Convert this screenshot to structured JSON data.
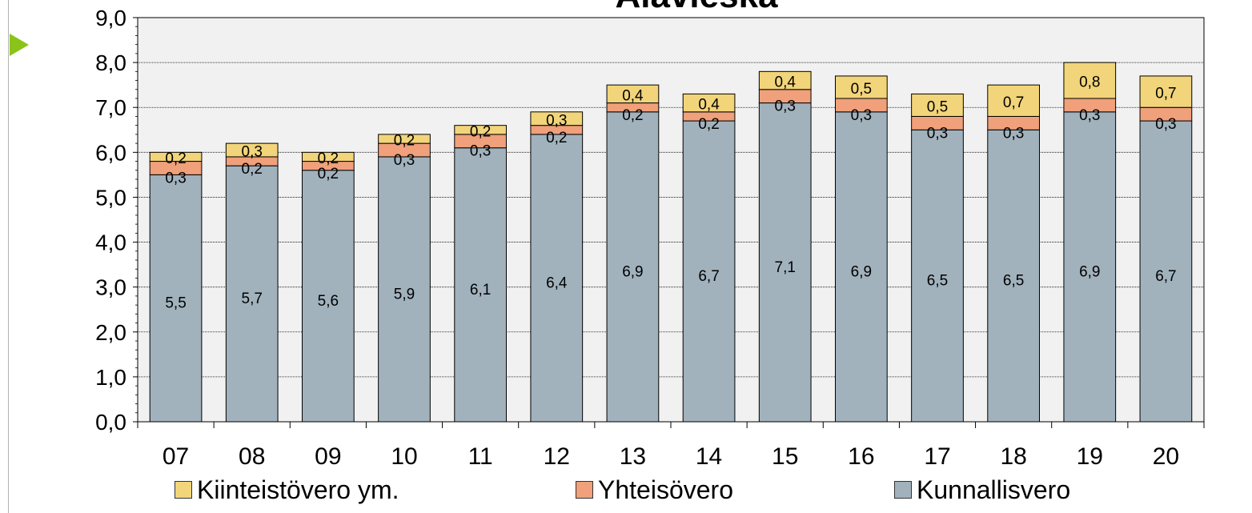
{
  "chart_data": {
    "type": "bar",
    "stacked": true,
    "title": "Alavieska",
    "categories": [
      "07",
      "08",
      "09",
      "10",
      "11",
      "12",
      "13",
      "14",
      "15",
      "16",
      "17",
      "18",
      "19",
      "20"
    ],
    "series": [
      {
        "name": "Kunnallisvero",
        "color": "#a1b2bd",
        "values": [
          5.5,
          5.7,
          5.6,
          5.9,
          6.1,
          6.4,
          6.9,
          6.7,
          7.1,
          6.9,
          6.5,
          6.5,
          6.9,
          6.7
        ],
        "labels": [
          "5,5",
          "5,7",
          "5,6",
          "5,9",
          "6,1",
          "6,4",
          "6,9",
          "6,7",
          "7,1",
          "6,9",
          "6,5",
          "6,5",
          "6,9",
          "6,7"
        ]
      },
      {
        "name": "Yhteisövero",
        "color": "#f0a07a",
        "values": [
          0.3,
          0.2,
          0.2,
          0.3,
          0.3,
          0.2,
          0.2,
          0.2,
          0.3,
          0.3,
          0.3,
          0.3,
          0.3,
          0.3
        ],
        "labels": [
          "0,3",
          "0,2",
          "0,2",
          "0,3",
          "0,3",
          "0,2",
          "0,2",
          "0,2",
          "0,3",
          "0,3",
          "0,3",
          "0,3",
          "0,3",
          "0,3"
        ]
      },
      {
        "name": "Kiinteistövero ym.",
        "color": "#f2d57a",
        "values": [
          0.2,
          0.3,
          0.2,
          0.2,
          0.2,
          0.3,
          0.4,
          0.4,
          0.4,
          0.5,
          0.5,
          0.7,
          0.8,
          0.7
        ],
        "labels": [
          "0,2",
          "0,3",
          "0,2",
          "0,2",
          "0,2",
          "0,3",
          "0,4",
          "0,4",
          "0,4",
          "0,5",
          "0,5",
          "0,7",
          "0,8",
          "0,7"
        ]
      }
    ],
    "ylim": [
      0,
      9
    ],
    "yticks": [
      "0,0",
      "1,0",
      "2,0",
      "3,0",
      "4,0",
      "5,0",
      "6,0",
      "7,0",
      "8,0",
      "9,0"
    ],
    "grid": true,
    "legend_position": "bottom",
    "plot_background": "#f1f1f1"
  },
  "legend": {
    "item1": "Kiinteistövero ym.",
    "item2": "Yhteisövero",
    "item3": "Kunnallisvero"
  }
}
